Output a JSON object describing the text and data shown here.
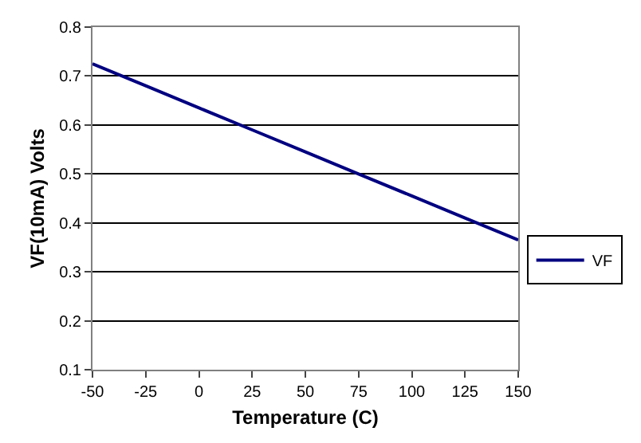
{
  "chart_data": {
    "type": "line",
    "xlabel": "Temperature (C)",
    "ylabel": "VF(10mA) Volts",
    "x": [
      -50,
      -25,
      0,
      25,
      50,
      75,
      100,
      125,
      150
    ],
    "series": [
      {
        "name": "VF",
        "color": "#000080",
        "values": [
          0.725,
          0.68,
          0.635,
          0.59,
          0.545,
          0.5,
          0.455,
          0.41,
          0.365
        ]
      }
    ],
    "xlim": [
      -50,
      150
    ],
    "xticks": [
      -50,
      -25,
      0,
      25,
      50,
      75,
      100,
      125,
      150
    ],
    "ylim": [
      0.1,
      0.8
    ],
    "yticks": [
      0.1,
      0.2,
      0.3,
      0.4,
      0.5,
      0.6,
      0.7,
      0.8
    ],
    "grid": "y",
    "legend": "right",
    "marker": "none",
    "line_style": "solid"
  }
}
